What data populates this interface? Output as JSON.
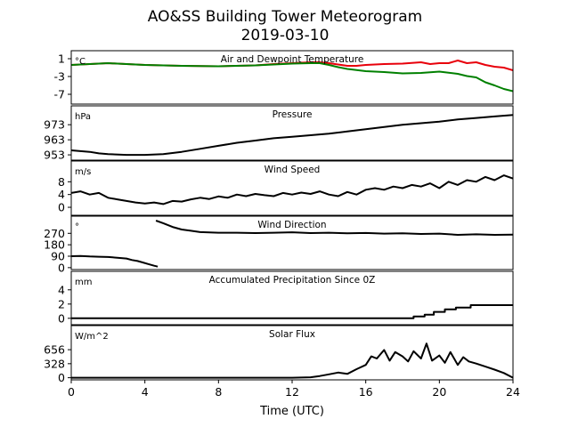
{
  "title_line1": "AO&SS Building Tower Meteorogram",
  "title_line2": "2019-03-10",
  "colors": {
    "temperature": "#e8000b",
    "dewpoint": "#008000",
    "default": "#000000"
  },
  "chart_data": {
    "type": "line",
    "xlabel": "Time (UTC)",
    "xlim": [
      0,
      24
    ],
    "x_ticks": [
      0,
      4,
      8,
      12,
      16,
      20,
      24
    ],
    "panels": [
      {
        "title": "Air and Dewpoint Temperature",
        "unit": "°C",
        "ylim": [
          -9.2,
          2.8
        ],
        "y_ticks": [
          1,
          -3,
          -7
        ],
        "series": [
          {
            "color_key": "temperature",
            "x": [
              0,
              1,
              2,
              3,
              4,
              6,
              8,
              10,
              11,
              12,
              13,
              13.5,
              14,
              14.5,
              15,
              15.5,
              16,
              17,
              18,
              19,
              19.5,
              20,
              20.5,
              21,
              21.5,
              22,
              22.5,
              23,
              23.5,
              24
            ],
            "y": [
              -0.4,
              -0.2,
              0.0,
              -0.2,
              -0.4,
              -0.6,
              -0.7,
              -0.5,
              -0.2,
              0.0,
              0.2,
              0.2,
              0.0,
              -0.3,
              -0.6,
              -0.6,
              -0.4,
              -0.2,
              -0.1,
              0.2,
              -0.2,
              0.0,
              0.0,
              0.6,
              0.0,
              0.2,
              -0.4,
              -0.8,
              -1.0,
              -1.6
            ]
          },
          {
            "color_key": "dewpoint",
            "x": [
              0,
              1,
              2,
              3,
              4,
              6,
              8,
              10,
              11,
              12,
              13,
              13.5,
              14,
              14.5,
              15,
              16,
              17,
              18,
              19,
              20,
              21,
              21.5,
              22,
              22.5,
              23,
              23.5,
              24
            ],
            "y": [
              -0.4,
              -0.2,
              0.0,
              -0.2,
              -0.4,
              -0.6,
              -0.7,
              -0.5,
              -0.3,
              -0.1,
              0.0,
              0.0,
              -0.4,
              -0.9,
              -1.3,
              -1.8,
              -2.0,
              -2.3,
              -2.2,
              -1.9,
              -2.4,
              -2.9,
              -3.2,
              -4.3,
              -5.0,
              -5.8,
              -6.3
            ]
          }
        ]
      },
      {
        "title": "Pressure",
        "unit": "hPa",
        "ylim": [
          949.5,
          985.5
        ],
        "y_ticks": [
          973,
          963,
          953
        ],
        "series": [
          {
            "color_key": "default",
            "x": [
              0,
              1,
              1.5,
              2,
              3,
              4,
              5,
              6,
              7,
              8,
              9,
              10,
              11,
              12,
              13,
              14,
              15,
              16,
              17,
              18,
              19,
              20,
              21,
              22,
              23,
              24
            ],
            "y": [
              956,
              955,
              954,
              953.5,
              953,
              953,
              953.5,
              955,
              957,
              959,
              961,
              962.5,
              964,
              965,
              966,
              967,
              968.5,
              970,
              971.5,
              973,
              974,
              975,
              976.5,
              977.5,
              978.5,
              979.5
            ]
          }
        ]
      },
      {
        "title": "Wind Speed",
        "unit": "m/s",
        "ylim": [
          -2.5,
          14.5
        ],
        "y_ticks": [
          8,
          4,
          0
        ],
        "series": [
          {
            "color_key": "default",
            "x": [
              0,
              0.5,
              1,
              1.5,
              2,
              2.5,
              3,
              3.5,
              4,
              4.5,
              5,
              5.5,
              6,
              6.5,
              7,
              7.5,
              8,
              8.5,
              9,
              9.5,
              10,
              10.5,
              11,
              11.5,
              12,
              12.5,
              13,
              13.5,
              14,
              14.5,
              15,
              15.5,
              16,
              16.5,
              17,
              17.5,
              18,
              18.5,
              19,
              19.5,
              20,
              20.5,
              21,
              21.5,
              22,
              22.5,
              23,
              23.5,
              24
            ],
            "y": [
              4.5,
              5.0,
              4.0,
              4.5,
              3.0,
              2.5,
              2.0,
              1.5,
              1.2,
              1.5,
              1.0,
              2.0,
              1.8,
              2.5,
              3.0,
              2.6,
              3.4,
              3.0,
              4.0,
              3.5,
              4.2,
              3.8,
              3.5,
              4.5,
              4.0,
              4.6,
              4.2,
              5.0,
              4.0,
              3.5,
              4.8,
              4.0,
              5.5,
              6.0,
              5.5,
              6.5,
              6.0,
              7.0,
              6.5,
              7.5,
              6.0,
              8.0,
              7.0,
              8.5,
              8.0,
              9.5,
              8.5,
              10.0,
              9.0
            ]
          }
        ]
      },
      {
        "title": "Wind Direction",
        "unit": "°",
        "ylim": [
          -15,
          405
        ],
        "y_ticks": [
          270,
          180,
          90,
          0
        ],
        "series": [
          {
            "color_key": "default",
            "x": [
              0,
              0.5,
              1,
              1.5,
              2,
              2.5,
              3,
              3.3,
              3.6,
              3.9,
              4.2,
              4.5,
              4.7
            ],
            "y": [
              90,
              92,
              88,
              86,
              84,
              78,
              72,
              60,
              52,
              40,
              28,
              15,
              8
            ]
          },
          {
            "color_key": "default",
            "x": [
              4.6,
              5,
              5.5,
              6,
              6.5,
              7,
              8,
              9,
              10,
              11,
              12,
              13,
              14,
              15,
              16,
              17,
              18,
              19,
              20,
              21,
              22,
              23,
              24
            ],
            "y": [
              370,
              350,
              320,
              300,
              290,
              280,
              275,
              275,
              272,
              275,
              278,
              272,
              275,
              270,
              273,
              268,
              270,
              265,
              268,
              258,
              262,
              258,
              260
            ]
          }
        ]
      },
      {
        "title": "Accumulated Precipitation Since 0Z",
        "unit": "mm",
        "ylim": [
          -0.9,
          6.6
        ],
        "y_ticks": [
          4,
          2,
          0
        ],
        "series": [
          {
            "color_key": "default",
            "x": [
              0,
              18.6,
              18.6,
              19.2,
              19.2,
              19.7,
              19.7,
              20.3,
              20.3,
              20.9,
              20.9,
              21.7,
              21.7,
              24
            ],
            "y": [
              0,
              0,
              0.25,
              0.25,
              0.5,
              0.5,
              0.9,
              0.9,
              1.25,
              1.25,
              1.5,
              1.5,
              1.85,
              1.85
            ]
          }
        ]
      },
      {
        "title": "Solar Flux",
        "unit": "W/m^2",
        "ylim": [
          -50,
          1220
        ],
        "y_ticks": [
          656,
          328,
          0
        ],
        "series": [
          {
            "color_key": "default",
            "x": [
              0,
              12,
              13,
              13.5,
              14,
              14.5,
              15,
              15.5,
              16,
              16.3,
              16.6,
              17,
              17.3,
              17.6,
              18,
              18.3,
              18.6,
              19,
              19.3,
              19.6,
              20,
              20.3,
              20.6,
              21,
              21.3,
              21.6,
              22,
              22.5,
              23,
              23.5,
              24
            ],
            "y": [
              0,
              0,
              10,
              40,
              80,
              120,
              90,
              200,
              300,
              500,
              450,
              650,
              400,
              600,
              500,
              380,
              620,
              450,
              800,
              400,
              520,
              350,
              600,
              300,
              480,
              380,
              330,
              260,
              190,
              110,
              0
            ]
          }
        ]
      }
    ]
  }
}
